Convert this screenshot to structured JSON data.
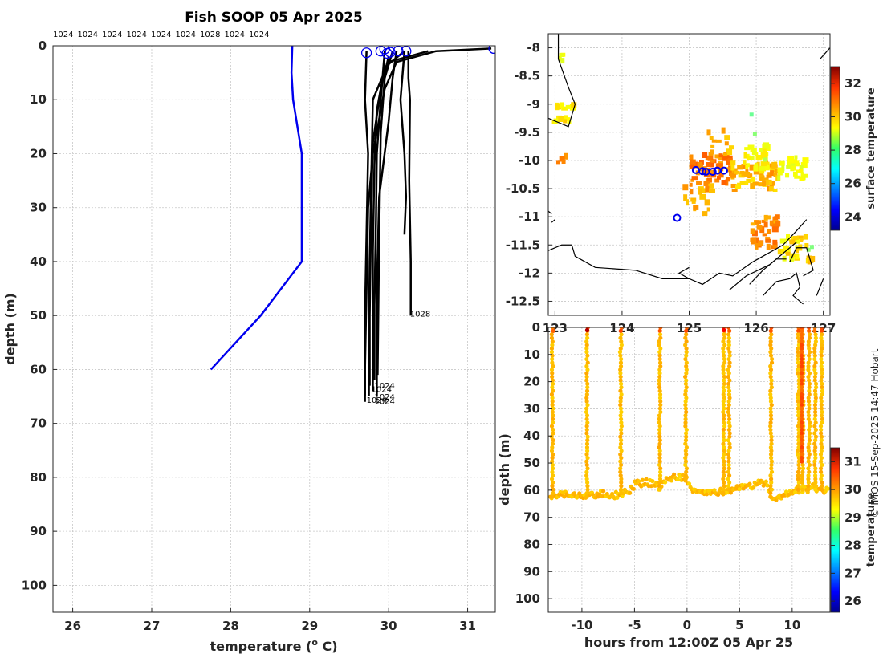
{
  "credit": "© IMOS 15-Sep-2025 14:47 Hobart",
  "chart_data": [
    {
      "type": "line",
      "title": "Fish SOOP 05 Apr 2025",
      "xlabel": "temperature (",
      "xlabel_sup": "o",
      "xlabel_end": " C)",
      "ylabel": "depth (m)",
      "xlim": [
        25.75,
        31.35
      ],
      "ylim": [
        105,
        0
      ],
      "y_reversed": true,
      "grid": true,
      "xticks": [
        26,
        27,
        28,
        29,
        30,
        31
      ],
      "yticks": [
        0,
        10,
        20,
        30,
        40,
        50,
        60,
        70,
        80,
        90,
        100
      ],
      "top_labels": [
        "1024",
        "1024",
        "1024",
        "1024",
        "1024",
        "1024",
        "1028",
        "1024",
        "1024"
      ],
      "climatology": {
        "color": "#0000ee",
        "temperature": [
          28.78,
          28.77,
          28.79,
          28.9,
          28.9,
          28.38,
          27.75
        ],
        "depth": [
          0,
          5,
          10,
          20,
          40,
          50,
          60
        ]
      },
      "profiles_color": "#000000",
      "profiles": [
        {
          "t": [
            31.3,
            30.6,
            30.1,
            29.95,
            29.8,
            29.74,
            29.72,
            29.7,
            29.7
          ],
          "d": [
            0.5,
            1,
            3,
            8,
            20,
            30,
            45,
            60,
            65
          ]
        },
        {
          "t": [
            30.5,
            30.0,
            29.8,
            29.78,
            29.76,
            29.75,
            29.75
          ],
          "d": [
            1,
            3,
            10,
            25,
            40,
            55,
            65
          ]
        },
        {
          "t": [
            30.2,
            29.95,
            29.85,
            29.82,
            29.8,
            29.8,
            29.8
          ],
          "d": [
            1,
            4,
            12,
            22,
            38,
            52,
            64
          ]
        },
        {
          "t": [
            30.0,
            29.9,
            29.8,
            29.78,
            29.76,
            29.76
          ],
          "d": [
            2,
            8,
            18,
            30,
            50,
            63
          ]
        },
        {
          "t": [
            29.72,
            29.7,
            29.74,
            29.72,
            29.7,
            29.7
          ],
          "d": [
            1,
            10,
            20,
            35,
            50,
            66
          ]
        },
        {
          "t": [
            30.1,
            30.05,
            30.0,
            29.88,
            29.85,
            29.85
          ],
          "d": [
            1,
            6,
            14,
            28,
            45,
            65
          ]
        },
        {
          "t": [
            30.25,
            30.25,
            30.27,
            30.26,
            30.28,
            30.28
          ],
          "d": [
            1,
            6,
            10,
            25,
            40,
            50
          ]
        },
        {
          "t": [
            30.2,
            30.15,
            30.2,
            30.22,
            30.2
          ],
          "d": [
            1,
            10,
            20,
            28,
            35
          ]
        },
        {
          "t": [
            29.95,
            29.9,
            29.85,
            29.84,
            29.82,
            29.82
          ],
          "d": [
            1,
            10,
            20,
            32,
            48,
            62
          ]
        },
        {
          "t": [
            30.05,
            29.95,
            29.9,
            29.88,
            29.86
          ],
          "d": [
            1,
            6,
            16,
            35,
            61
          ]
        }
      ],
      "start_markers": [
        {
          "t": 31.33,
          "d": 0.5
        },
        {
          "t": 29.72,
          "d": 1.3
        },
        {
          "t": 29.9,
          "d": 1
        },
        {
          "t": 29.95,
          "d": 0.6
        },
        {
          "t": 30.02,
          "d": 1.2
        },
        {
          "t": 30.12,
          "d": 1
        },
        {
          "t": 30.22,
          "d": 1
        },
        {
          "t": 29.98,
          "d": 1.4
        }
      ],
      "annotations": [
        {
          "text": "1028",
          "t": 30.27,
          "d": 50.2
        },
        {
          "text": "1024",
          "t": 29.82,
          "d": 63.5
        },
        {
          "text": "1024",
          "t": 29.78,
          "d": 64.2
        },
        {
          "text": "1024",
          "t": 29.82,
          "d": 65.6
        },
        {
          "text": "1024",
          "t": 29.72,
          "d": 66.2
        },
        {
          "text": "1024",
          "t": 29.82,
          "d": 66.4
        }
      ]
    },
    {
      "type": "heatmap",
      "colorbar_label": "surface temperature",
      "colorbar_ticks": [
        24,
        26,
        28,
        30,
        32
      ],
      "colorbar_range": [
        23.2,
        33.0
      ],
      "ylim": [
        -12.75,
        -7.75
      ],
      "xlim": [
        122.9,
        127.1
      ],
      "yticks": [
        -8,
        -8.5,
        -9,
        -9.5,
        -10,
        -10.5,
        -11,
        -11.5,
        -12,
        -12.5
      ],
      "xticks": [
        123,
        124,
        125,
        126,
        127
      ],
      "grid": true,
      "track_markers": [
        {
          "lon": 124.82,
          "lat": -11.02
        },
        {
          "lon": 125.1,
          "lat": -10.17
        },
        {
          "lon": 125.25,
          "lat": -10.2
        },
        {
          "lon": 125.35,
          "lat": -10.2
        },
        {
          "lon": 125.42,
          "lat": -10.18
        },
        {
          "lon": 125.52,
          "lat": -10.18
        },
        {
          "lon": 125.2,
          "lat": -10.19
        }
      ]
    },
    {
      "type": "scatter",
      "xlabel": "hours from 12:00Z 05 Apr 25",
      "ylabel": "depth (m)",
      "xlim": [
        -13.2,
        13.6
      ],
      "ylim": [
        105,
        0
      ],
      "y_reversed": true,
      "xticks": [
        -10,
        -5,
        0,
        5,
        10
      ],
      "yticks": [
        0,
        10,
        20,
        30,
        40,
        50,
        60,
        70,
        80,
        90,
        100
      ],
      "grid": true,
      "colorbar_label": "temperature",
      "colorbar_ticks": [
        26,
        27,
        28,
        29,
        30,
        31
      ],
      "colorbar_range": [
        25.6,
        31.5
      ],
      "profile_times": [
        -12.8,
        -9.5,
        -6.3,
        -2.6,
        -0.1,
        3.5,
        4.0,
        8.0,
        10.6,
        11.0,
        11.6,
        12.2,
        12.8
      ],
      "bottom_depth": [
        [
          -13.0,
          63
        ],
        [
          -12.6,
          62
        ],
        [
          -12.0,
          61
        ],
        [
          -11.0,
          62
        ],
        [
          -10.0,
          62
        ],
        [
          -9.0,
          62
        ],
        [
          -8.0,
          61
        ],
        [
          -7.0,
          62
        ],
        [
          -6.0,
          61
        ],
        [
          -5.5,
          60
        ],
        [
          -5.0,
          58
        ],
        [
          -4.0,
          57
        ],
        [
          -3.0,
          58
        ],
        [
          -2.5,
          59
        ],
        [
          -2.0,
          56
        ],
        [
          -1.0,
          55
        ],
        [
          0.0,
          56
        ],
        [
          0.6,
          61
        ],
        [
          1.5,
          61
        ],
        [
          2.5,
          60
        ],
        [
          3.5,
          61
        ],
        [
          4.5,
          59
        ],
        [
          5.5,
          59
        ],
        [
          6.5,
          58
        ],
        [
          7.5,
          57
        ],
        [
          8.2,
          64
        ],
        [
          9.0,
          62
        ],
        [
          10.0,
          60
        ],
        [
          11.0,
          60
        ],
        [
          12.0,
          59
        ],
        [
          13.0,
          60
        ]
      ]
    }
  ]
}
